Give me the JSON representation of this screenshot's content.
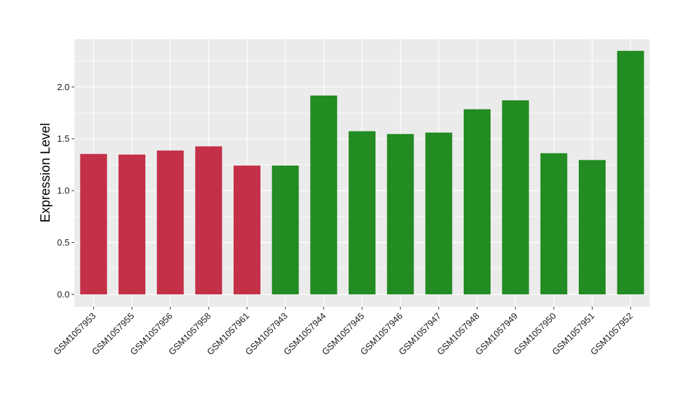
{
  "chart_data": {
    "type": "bar",
    "title": "",
    "xlabel": "",
    "ylabel": "Expression Level",
    "ylim": [
      -0.12,
      2.46
    ],
    "yticks": [
      "0.0",
      "0.5",
      "1.0",
      "1.5",
      "2.0"
    ],
    "grid": true,
    "legend": "none",
    "categories": [
      "GSM1057953",
      "GSM1057955",
      "GSM1057956",
      "GSM1057958",
      "GSM1057961",
      "GSM1057943",
      "GSM1057944",
      "GSM1057945",
      "GSM1057946",
      "GSM1057947",
      "GSM1057948",
      "GSM1057949",
      "GSM1057950",
      "GSM1057951",
      "GSM1057952"
    ],
    "values": [
      1.354,
      1.348,
      1.387,
      1.427,
      1.242,
      1.242,
      1.917,
      1.573,
      1.546,
      1.56,
      1.785,
      1.871,
      1.361,
      1.295,
      2.348
    ],
    "bar_groups": [
      "red",
      "red",
      "red",
      "red",
      "red",
      "green",
      "green",
      "green",
      "green",
      "green",
      "green",
      "green",
      "green",
      "green",
      "green"
    ],
    "colors": {
      "red": "#C33048",
      "green": "#228B22",
      "panel": "#EBEBEB",
      "grid": "#FFFFFF"
    }
  }
}
